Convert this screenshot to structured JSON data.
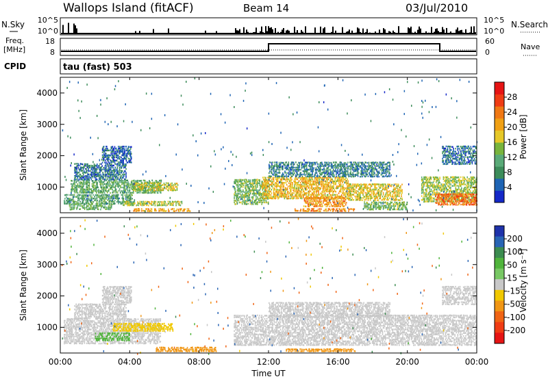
{
  "header": {
    "title": "Wallops Island (fitACF)",
    "beam": "Beam 14",
    "date": "03/Jul/2010"
  },
  "panels": {
    "nsky": {
      "left_label": "N.Sky",
      "right_label": "N.Search",
      "left_ticks": [
        "10^5",
        "10^0"
      ],
      "right_ticks": [
        "10^5",
        "10^0"
      ]
    },
    "freq": {
      "left_label_1": "Freq.",
      "left_label_2": "[MHz]",
      "left_ticks": [
        "18",
        "8"
      ],
      "right_label": "Nave",
      "right_ticks": [
        "60",
        "0"
      ]
    },
    "cpid": {
      "label": "CPID",
      "text": "tau (fast) 503"
    }
  },
  "colors": {
    "power": [
      "#1428c8",
      "#1e64b4",
      "#3c8c5a",
      "#5aaa78",
      "#78b43c",
      "#e6c828",
      "#f0a014",
      "#f07814",
      "#f03c14",
      "#e61414"
    ],
    "velocity": [
      "#1e32aa",
      "#2864b4",
      "#3c8c50",
      "#50b43c",
      "#78c864",
      "#c8c8c8",
      "#f0c800",
      "#f09614",
      "#f06414",
      "#f03c14",
      "#e61414"
    ]
  },
  "chart_data": [
    {
      "type": "heatmap",
      "name": "power",
      "ylabel": "Slant Range [km]",
      "yticks": [
        "1000",
        "2000",
        "3000",
        "4000"
      ],
      "ylim": [
        180,
        4500
      ],
      "colorbar_label": "Power [dB]",
      "colorbar_ticks": [
        "4",
        "8",
        "12",
        "16",
        "20",
        "24",
        "28"
      ],
      "colorbar_range": [
        0,
        32
      ],
      "xlim_hours": [
        0,
        24
      ],
      "features": [
        {
          "t": [
            0.2,
            4.3
          ],
          "r": [
            430,
            780
          ],
          "v": 10
        },
        {
          "t": [
            0.6,
            5.8
          ],
          "r": [
            780,
            1220
          ],
          "v": 11
        },
        {
          "t": [
            4.2,
            6.8
          ],
          "r": [
            860,
            1120
          ],
          "v": 17
        },
        {
          "t": [
            0.8,
            3.8
          ],
          "r": [
            1200,
            1750
          ],
          "v": 6
        },
        {
          "t": [
            2.4,
            4.1
          ],
          "r": [
            1750,
            2300
          ],
          "v": 5
        },
        {
          "t": [
            3.6,
            7.0
          ],
          "r": [
            380,
            560
          ],
          "v": 16
        },
        {
          "t": [
            0.5,
            3.0
          ],
          "r": [
            250,
            450
          ],
          "v": 12
        },
        {
          "t": [
            10.0,
            12.0
          ],
          "r": [
            420,
            1250
          ],
          "v": 13
        },
        {
          "t": [
            11.6,
            16.6
          ],
          "r": [
            600,
            1300
          ],
          "v": 19
        },
        {
          "t": [
            12.0,
            19.0
          ],
          "r": [
            1300,
            1820
          ],
          "v": 7
        },
        {
          "t": [
            14.0,
            16.5
          ],
          "r": [
            350,
            700
          ],
          "v": 22
        },
        {
          "t": [
            16.5,
            19.7
          ],
          "r": [
            550,
            1100
          ],
          "v": 18
        },
        {
          "t": [
            17.5,
            20.0
          ],
          "r": [
            250,
            500
          ],
          "v": 13
        },
        {
          "t": [
            20.8,
            24.0
          ],
          "r": [
            500,
            1300
          ],
          "v": 15
        },
        {
          "t": [
            21.6,
            24.0
          ],
          "r": [
            400,
            760
          ],
          "v": 24
        },
        {
          "t": [
            22.0,
            24.0
          ],
          "r": [
            1700,
            2300
          ],
          "v": 6
        },
        {
          "t": [
            4.2,
            7.5
          ],
          "r": [
            200,
            300
          ],
          "v": 21
        },
        {
          "t": [
            13.5,
            17.0
          ],
          "r": [
            200,
            310
          ],
          "v": 23
        }
      ]
    },
    {
      "type": "heatmap",
      "name": "velocity",
      "ylabel": "Slant Range [km]",
      "yticks": [
        "1000",
        "2000",
        "3000",
        "4000"
      ],
      "ylim": [
        180,
        4500
      ],
      "xlabel": "Time UT",
      "xticks": [
        "00:00",
        "04:00",
        "08:00",
        "12:00",
        "16:00",
        "20:00",
        "00:00"
      ],
      "colorbar_label": "Velocity [m s⁻¹]",
      "colorbar_ticks": [
        "200",
        "100",
        "50",
        "15",
        "-15",
        "-50",
        "-100",
        "-200"
      ],
      "colorbar_range": [
        -250,
        250
      ],
      "xlim_hours": [
        0,
        24
      ],
      "features": [
        {
          "t": [
            0.2,
            5.8
          ],
          "r": [
            450,
            1250
          ],
          "v": 0
        },
        {
          "t": [
            3.0,
            6.5
          ],
          "r": [
            850,
            1150
          ],
          "v": -40
        },
        {
          "t": [
            2.0,
            4.0
          ],
          "r": [
            550,
            800
          ],
          "v": 45
        },
        {
          "t": [
            0.8,
            3.8
          ],
          "r": [
            1250,
            1750
          ],
          "v": 0
        },
        {
          "t": [
            2.4,
            4.1
          ],
          "r": [
            1750,
            2300
          ],
          "v": 0
        },
        {
          "t": [
            10.0,
            24.0
          ],
          "r": [
            400,
            1400
          ],
          "v": 0
        },
        {
          "t": [
            12.0,
            19.0
          ],
          "r": [
            1300,
            1800
          ],
          "v": 0
        },
        {
          "t": [
            22.0,
            24.0
          ],
          "r": [
            1700,
            2300
          ],
          "v": 0
        },
        {
          "t": [
            5.5,
            9.0
          ],
          "r": [
            200,
            350
          ],
          "v": -70
        },
        {
          "t": [
            13.0,
            17.0
          ],
          "r": [
            200,
            320
          ],
          "v": -60
        }
      ]
    }
  ]
}
